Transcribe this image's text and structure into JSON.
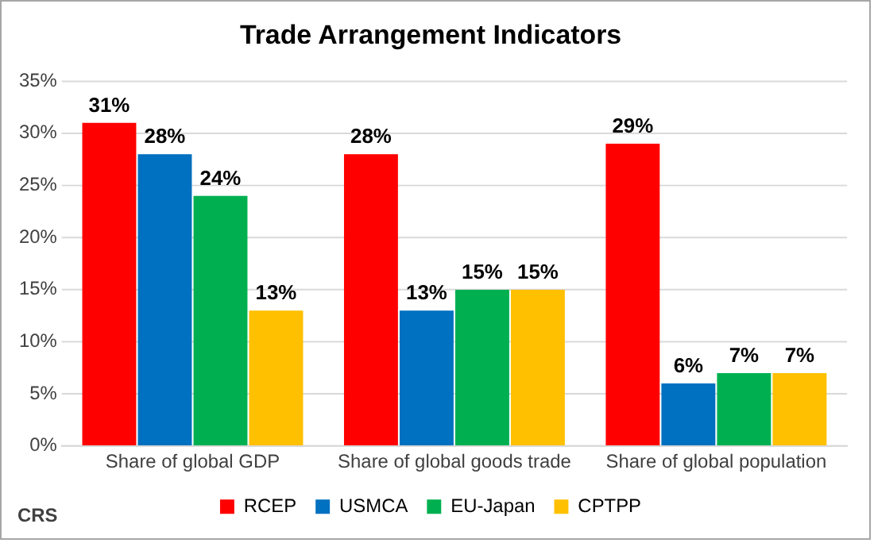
{
  "chart_data": {
    "type": "bar",
    "title": "Trade Arrangement Indicators",
    "categories": [
      "Share of global GDP",
      "Share of global goods trade",
      "Share of global population"
    ],
    "series": [
      {
        "name": "RCEP",
        "color": "#ff0000",
        "values": [
          31,
          28,
          29
        ],
        "value_labels": [
          "31%",
          "28%",
          "29%"
        ]
      },
      {
        "name": "USMCA",
        "color": "#0070c0",
        "values": [
          28,
          13,
          6
        ],
        "value_labels": [
          "28%",
          "13%",
          "6%"
        ]
      },
      {
        "name": "EU-Japan",
        "color": "#00b050",
        "values": [
          24,
          15,
          7
        ],
        "value_labels": [
          "24%",
          "15%",
          "7%"
        ]
      },
      {
        "name": "CPTPP",
        "color": "#ffc000",
        "values": [
          13,
          15,
          7
        ],
        "value_labels": [
          "13%",
          "15%",
          "7%"
        ]
      }
    ],
    "ylim": [
      0,
      35
    ],
    "yticks": [
      {
        "value": 0,
        "label": "0%"
      },
      {
        "value": 5,
        "label": "5%"
      },
      {
        "value": 10,
        "label": "10%"
      },
      {
        "value": 15,
        "label": "15%"
      },
      {
        "value": 20,
        "label": "20%"
      },
      {
        "value": 25,
        "label": "25%"
      },
      {
        "value": 30,
        "label": "30%"
      },
      {
        "value": 35,
        "label": "35%"
      }
    ],
    "grid": "y",
    "legend": "bottom",
    "annotations": [
      "CRS"
    ]
  }
}
